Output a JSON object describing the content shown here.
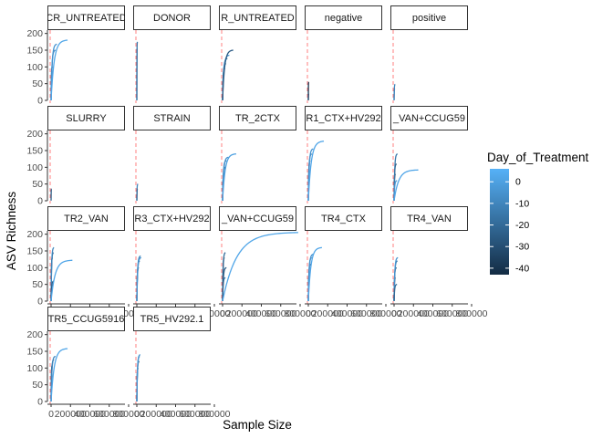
{
  "chart_data": {
    "type": "line",
    "xlabel": "Sample Size",
    "ylabel": "ASV Richness",
    "ylim": [
      0,
      210
    ],
    "xlim": [
      0,
      800000
    ],
    "y_ticks": [
      "0",
      "50",
      "100",
      "150",
      "200"
    ],
    "x_ticks": [
      "0",
      "200000",
      "400000",
      "600000",
      "800000"
    ],
    "x_tick_values": [
      0,
      200000,
      400000,
      600000,
      800000
    ],
    "reference_line": {
      "x": 0,
      "color": "#ff7f7f",
      "style": "dashed"
    },
    "legend": {
      "title": "Day_of_Treatment",
      "placement": "right",
      "range": [
        -43,
        6
      ],
      "ticks": [
        0,
        -10,
        -20,
        -30,
        -40
      ],
      "tick_labels": [
        "0",
        "-10",
        "-20",
        "-30",
        "-40"
      ],
      "color_low": "#132b43",
      "color_high": "#56b1f7"
    },
    "panels": [
      {
        "label": "CR_UNTREATED",
        "curves": [
          {
            "xmax": 15000,
            "ymax": 100,
            "day": -35
          },
          {
            "xmax": 45000,
            "ymax": 150,
            "day": -10
          },
          {
            "xmax": 60000,
            "ymax": 168,
            "day": -5
          },
          {
            "xmax": 170000,
            "ymax": 180,
            "day": 2
          }
        ]
      },
      {
        "label": "DONOR",
        "curves": [
          {
            "xmax": 4000,
            "ymax": 155,
            "day": -20
          },
          {
            "xmax": 6000,
            "ymax": 175,
            "day": -15
          }
        ]
      },
      {
        "label": "R_UNTREATED",
        "curves": [
          {
            "xmax": 25000,
            "ymax": 95,
            "day": -40
          },
          {
            "xmax": 35000,
            "ymax": 110,
            "day": -30
          },
          {
            "xmax": 50000,
            "ymax": 125,
            "day": -15
          },
          {
            "xmax": 70000,
            "ymax": 135,
            "day": -5
          },
          {
            "xmax": 110000,
            "ymax": 150,
            "day": -25
          }
        ]
      },
      {
        "label": "negative",
        "curves": [
          {
            "xmax": 4000,
            "ymax": 55,
            "day": -40
          },
          {
            "xmax": 6000,
            "ymax": 20,
            "day": -30
          }
        ]
      },
      {
        "label": "positive",
        "curves": [
          {
            "xmax": 8000,
            "ymax": 35,
            "day": -15
          },
          {
            "xmax": 12000,
            "ymax": 48,
            "day": -10
          }
        ]
      },
      {
        "label": "SLURRY",
        "curves": [
          {
            "xmax": 5000,
            "ymax": 35,
            "day": -25
          }
        ]
      },
      {
        "label": "STRAIN",
        "curves": [
          {
            "xmax": 12000,
            "ymax": 50,
            "day": -10
          },
          {
            "xmax": 8000,
            "ymax": 35,
            "day": -20
          }
        ]
      },
      {
        "label": "TR_2CTX",
        "curves": [
          {
            "xmax": 20000,
            "ymax": 80,
            "day": -35
          },
          {
            "xmax": 30000,
            "ymax": 100,
            "day": -25
          },
          {
            "xmax": 40000,
            "ymax": 120,
            "day": -15
          },
          {
            "xmax": 60000,
            "ymax": 130,
            "day": -5
          },
          {
            "xmax": 140000,
            "ymax": 140,
            "day": 0
          }
        ]
      },
      {
        "label": "R1_CTX+HV292",
        "curves": [
          {
            "xmax": 20000,
            "ymax": 120,
            "day": -30
          },
          {
            "xmax": 35000,
            "ymax": 140,
            "day": -15
          },
          {
            "xmax": 50000,
            "ymax": 155,
            "day": -5
          },
          {
            "xmax": 160000,
            "ymax": 178,
            "day": 2
          }
        ]
      },
      {
        "label": "_VAN+CCUG59",
        "curves": [
          {
            "xmax": 15000,
            "ymax": 80,
            "day": -40
          },
          {
            "xmax": 25000,
            "ymax": 110,
            "day": -30
          },
          {
            "xmax": 35000,
            "ymax": 140,
            "day": -15
          },
          {
            "xmax": 30000,
            "ymax": 60,
            "day": -5
          },
          {
            "xmax": 250000,
            "ymax": 92,
            "day": 2
          }
        ]
      },
      {
        "label": "TR2_VAN",
        "curves": [
          {
            "xmax": 15000,
            "ymax": 130,
            "day": -35
          },
          {
            "xmax": 25000,
            "ymax": 145,
            "day": -20
          },
          {
            "xmax": 30000,
            "ymax": 160,
            "day": -10
          },
          {
            "xmax": 30000,
            "ymax": 60,
            "day": -25
          },
          {
            "xmax": 220000,
            "ymax": 122,
            "day": 2
          }
        ]
      },
      {
        "label": "R3_CTX+HV292",
        "curves": [
          {
            "xmax": 20000,
            "ymax": 100,
            "day": -40
          },
          {
            "xmax": 30000,
            "ymax": 120,
            "day": -25
          },
          {
            "xmax": 40000,
            "ymax": 135,
            "day": -10
          },
          {
            "xmax": 45000,
            "ymax": 130,
            "day": -5
          }
        ]
      },
      {
        "label": "_VAN+CCUG59",
        "curves": [
          {
            "xmax": 20000,
            "ymax": 130,
            "day": -35
          },
          {
            "xmax": 30000,
            "ymax": 145,
            "day": -20
          },
          {
            "xmax": 30000,
            "ymax": 70,
            "day": -15
          },
          {
            "xmax": 40000,
            "ymax": 100,
            "day": -25
          },
          {
            "xmax": 780000,
            "ymax": 205,
            "day": 2
          }
        ]
      },
      {
        "label": "TR4_CTX",
        "curves": [
          {
            "xmax": 15000,
            "ymax": 80,
            "day": -35
          },
          {
            "xmax": 25000,
            "ymax": 110,
            "day": -25
          },
          {
            "xmax": 35000,
            "ymax": 130,
            "day": -15
          },
          {
            "xmax": 50000,
            "ymax": 140,
            "day": -5
          },
          {
            "xmax": 140000,
            "ymax": 160,
            "day": 2
          }
        ]
      },
      {
        "label": "TR4_VAN",
        "curves": [
          {
            "xmax": 15000,
            "ymax": 70,
            "day": -40
          },
          {
            "xmax": 25000,
            "ymax": 100,
            "day": -30
          },
          {
            "xmax": 35000,
            "ymax": 120,
            "day": -15
          },
          {
            "xmax": 40000,
            "ymax": 130,
            "day": -5
          },
          {
            "xmax": 30000,
            "ymax": 50,
            "day": -20
          }
        ]
      },
      {
        "label": "TR5_CCUG5916",
        "curves": [
          {
            "xmax": 15000,
            "ymax": 110,
            "day": -35
          },
          {
            "xmax": 30000,
            "ymax": 125,
            "day": -20
          },
          {
            "xmax": 45000,
            "ymax": 135,
            "day": -10
          },
          {
            "xmax": 170000,
            "ymax": 158,
            "day": 2
          }
        ]
      },
      {
        "label": "TR5_HV292.1",
        "curves": [
          {
            "xmax": 15000,
            "ymax": 100,
            "day": -35
          },
          {
            "xmax": 25000,
            "ymax": 120,
            "day": -25
          },
          {
            "xmax": 30000,
            "ymax": 135,
            "day": -10
          },
          {
            "xmax": 35000,
            "ymax": 140,
            "day": -5
          }
        ]
      }
    ]
  }
}
